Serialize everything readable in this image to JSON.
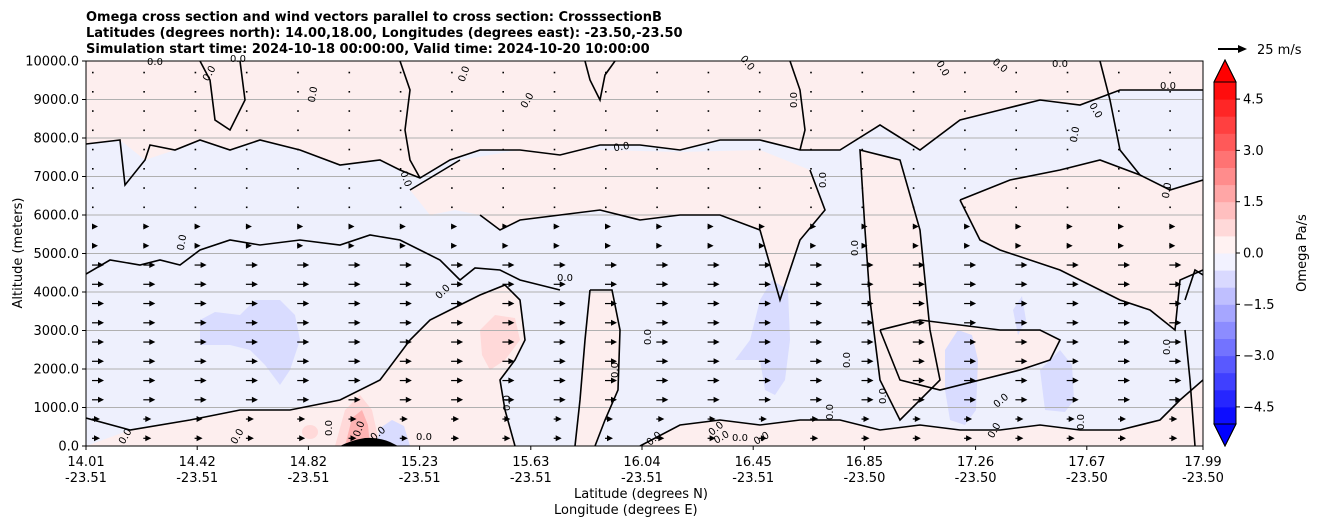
{
  "chart_data": {
    "type": "contour",
    "title_lines": [
      "Omega cross section and wind vectors parallel to cross section: CrosssectionB",
      "Latitudes (degrees north): 14.00,18.00, Longitudes (degrees east): -23.50,-23.50",
      "Simulation start time: 2024-10-18 00:00:00, Valid time: 2024-10-20 10:00:00"
    ],
    "xlabel_lines": [
      "Latitude (degrees N)",
      "Longitude (degrees E)"
    ],
    "ylabel": "Altitude (meters)",
    "x_ticks": [
      {
        "lat": "14.01",
        "lon": "-23.51"
      },
      {
        "lat": "14.42",
        "lon": "-23.51"
      },
      {
        "lat": "14.82",
        "lon": "-23.51"
      },
      {
        "lat": "15.23",
        "lon": "-23.51"
      },
      {
        "lat": "15.63",
        "lon": "-23.51"
      },
      {
        "lat": "16.04",
        "lon": "-23.51"
      },
      {
        "lat": "16.45",
        "lon": "-23.51"
      },
      {
        "lat": "16.85",
        "lon": "-23.50"
      },
      {
        "lat": "17.26",
        "lon": "-23.50"
      },
      {
        "lat": "17.67",
        "lon": "-23.50"
      },
      {
        "lat": "17.99",
        "lon": "-23.50"
      }
    ],
    "y_ticks": [
      "10000.0",
      "9000.0",
      "8000.0",
      "7000.0",
      "6000.0",
      "5000.0",
      "4000.0",
      "3000.0",
      "2000.0",
      "1000.0",
      "0.0"
    ],
    "ylim": [
      0,
      10000
    ],
    "grid": "horizontal",
    "contour_level_label": "0.0",
    "colorbar": {
      "label": "Omega Pa/s",
      "ticks": [
        "4.5",
        "3.0",
        "1.5",
        "0.0",
        "−1.5",
        "−3.0",
        "−4.5"
      ],
      "range": [
        -5.0,
        5.0
      ],
      "extend": "both",
      "colormap": "bwr",
      "colors": {
        "max": "#ff0000",
        "min": "#0000ff",
        "zero_pos": "#fff0f0",
        "zero_neg": "#f0f0ff"
      }
    },
    "quiver_key": {
      "label": "25 m/s",
      "speed": 25
    },
    "vectors": {
      "direction": "northward",
      "strong_altitude_range": [
        1200,
        5000
      ]
    },
    "colors": {
      "positive_fill": "#fdeeee",
      "negative_fill": "#eef0fd",
      "terrain": "#000000",
      "grid": "#b0b0b0"
    }
  }
}
